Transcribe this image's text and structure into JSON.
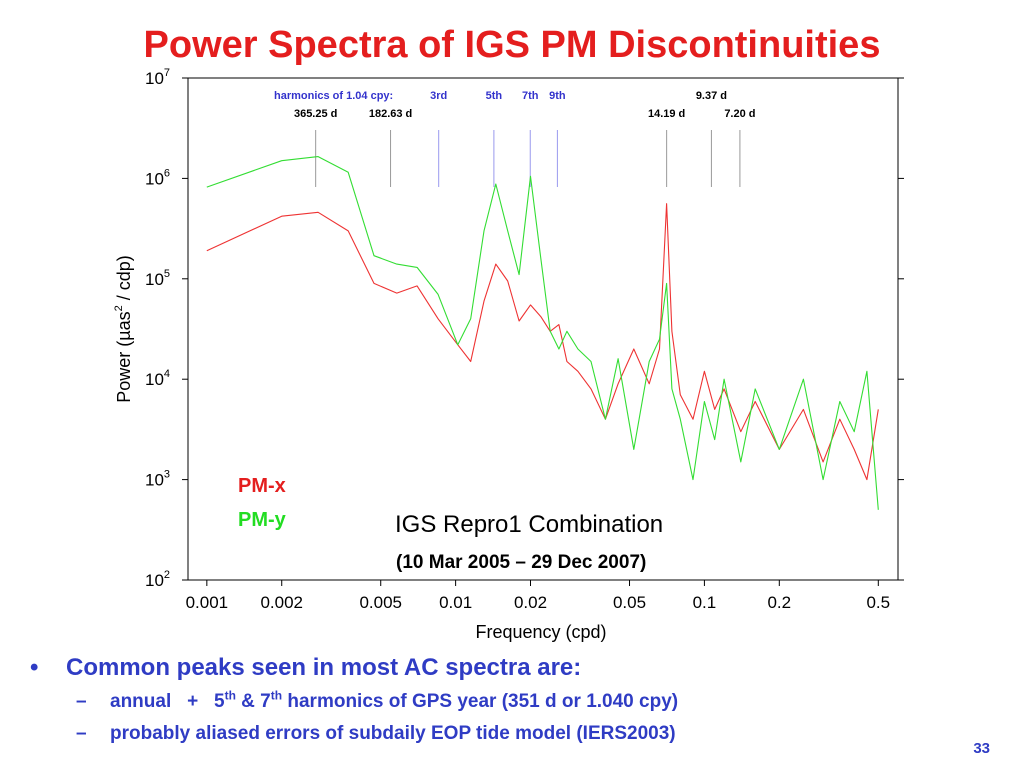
{
  "slide": {
    "title": "Power Spectra of IGS PM Discontinuities",
    "page_number": "33",
    "bullets": [
      {
        "text": "Common peaks seen in most AC spectra are:"
      }
    ],
    "sub1": {
      "a": "annual   +   5",
      "sup1": "th",
      "b": " & 7",
      "sup2": "th",
      "c": " harmonics of GPS year (351 d or 1.040 cpy)"
    },
    "sub2": {
      "text": "probably aliased errors of subdaily EOP tide model (IERS2003)"
    }
  },
  "chart_data": {
    "type": "line",
    "xlabel": "Frequency (cpd)",
    "ylabel_parts": [
      "Power (µas",
      "2",
      " / cdp)"
    ],
    "x_scale": "log",
    "y_scale": "log",
    "xlim": [
      0.00084,
      0.6
    ],
    "ylim": [
      100,
      10000000
    ],
    "x_ticks": [
      {
        "value": 0.001,
        "label": "0.001"
      },
      {
        "value": 0.002,
        "label": "0.002"
      },
      {
        "value": 0.005,
        "label": "0.005"
      },
      {
        "value": 0.01,
        "label": "0.01"
      },
      {
        "value": 0.02,
        "label": "0.02"
      },
      {
        "value": 0.05,
        "label": "0.05"
      },
      {
        "value": 0.1,
        "label": "0.1"
      },
      {
        "value": 0.2,
        "label": "0.2"
      },
      {
        "value": 0.5,
        "label": "0.5"
      }
    ],
    "y_ticks": [
      {
        "value": 100,
        "base": "10",
        "exp": "2"
      },
      {
        "value": 1000,
        "base": "10",
        "exp": "3"
      },
      {
        "value": 10000,
        "base": "10",
        "exp": "4"
      },
      {
        "value": 100000,
        "base": "10",
        "exp": "5"
      },
      {
        "value": 1000000,
        "base": "10",
        "exp": "6"
      },
      {
        "value": 10000000,
        "base": "10",
        "exp": "7"
      }
    ],
    "harmonics_header": {
      "label": "harmonics of 1.04 cpy:",
      "color": "#3333cc"
    },
    "reference_lines": [
      {
        "freq": 0.002738,
        "label": "365.25 d",
        "color": "#999999",
        "label_color": "#000000"
      },
      {
        "freq": 0.005476,
        "label": "182.63 d",
        "color": "#999999",
        "label_color": "#000000"
      },
      {
        "freq": 0.00855,
        "label": "3rd",
        "color": "#9999ee",
        "label_color": "#3333cc"
      },
      {
        "freq": 0.01425,
        "label": "5th",
        "color": "#9999ee",
        "label_color": "#3333cc"
      },
      {
        "freq": 0.01995,
        "label": "7th",
        "color": "#9999ee",
        "label_color": "#3333cc"
      },
      {
        "freq": 0.02565,
        "label": "9th",
        "color": "#9999ee",
        "label_color": "#3333cc"
      },
      {
        "freq": 0.0705,
        "label": "14.19 d",
        "color": "#999999",
        "label_color": "#000000"
      },
      {
        "freq": 0.1067,
        "label": "9.37 d",
        "color": "#999999",
        "label_color": "#000000"
      },
      {
        "freq": 0.1389,
        "label": "7.20 d",
        "color": "#999999",
        "label_color": "#000000"
      }
    ],
    "series": [
      {
        "name": "PM-x",
        "color": "#ee3333",
        "x": [
          0.001,
          0.002,
          0.0028,
          0.0037,
          0.0047,
          0.0058,
          0.007,
          0.0085,
          0.0102,
          0.0115,
          0.013,
          0.0145,
          0.0162,
          0.018,
          0.02,
          0.022,
          0.024,
          0.026,
          0.028,
          0.031,
          0.035,
          0.04,
          0.045,
          0.052,
          0.06,
          0.066,
          0.0705,
          0.074,
          0.08,
          0.09,
          0.1,
          0.11,
          0.12,
          0.14,
          0.16,
          0.2,
          0.25,
          0.3,
          0.35,
          0.4,
          0.45,
          0.5
        ],
        "values": [
          190000,
          420000,
          460000,
          300000,
          90000,
          72000,
          85000,
          40000,
          22000,
          15000,
          60000,
          140000,
          95000,
          38000,
          55000,
          42000,
          30000,
          35000,
          15000,
          12000,
          8000,
          4000,
          9000,
          20000,
          9000,
          20000,
          560000,
          30000,
          7000,
          4000,
          12000,
          5000,
          8000,
          3000,
          6000,
          2000,
          5000,
          1500,
          4000,
          2000,
          1000,
          5000
        ]
      },
      {
        "name": "PM-y",
        "color": "#33dd33",
        "x": [
          0.001,
          0.002,
          0.0028,
          0.0037,
          0.0047,
          0.0058,
          0.007,
          0.0085,
          0.0102,
          0.0115,
          0.013,
          0.0145,
          0.0162,
          0.018,
          0.02,
          0.022,
          0.024,
          0.026,
          0.028,
          0.031,
          0.035,
          0.04,
          0.045,
          0.052,
          0.06,
          0.066,
          0.0705,
          0.074,
          0.08,
          0.09,
          0.1,
          0.11,
          0.12,
          0.14,
          0.16,
          0.2,
          0.25,
          0.3,
          0.35,
          0.4,
          0.45,
          0.5
        ],
        "values": [
          820000,
          1500000,
          1650000,
          1150000,
          170000,
          140000,
          130000,
          70000,
          22000,
          40000,
          300000,
          880000,
          300000,
          110000,
          1050000,
          160000,
          30000,
          20000,
          30000,
          20000,
          15000,
          4000,
          16000,
          2000,
          15000,
          25000,
          90000,
          8000,
          4000,
          1000,
          6000,
          2500,
          10000,
          1500,
          8000,
          2000,
          10000,
          1000,
          6000,
          3000,
          12000,
          500
        ]
      }
    ],
    "legend": [
      {
        "text": "PM-x",
        "color": "#e41e1e"
      },
      {
        "text": "PM-y",
        "color": "#22dd22"
      }
    ],
    "annotation": {
      "line1": "IGS Repro1 Combination",
      "line2": "(10 Mar 2005 – 29 Dec 2007)"
    }
  }
}
